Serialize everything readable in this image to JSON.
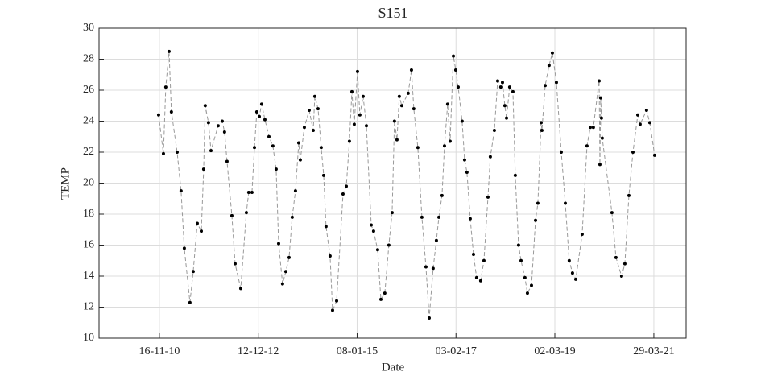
{
  "chart_data": {
    "type": "line",
    "title": "S151",
    "xlabel": "Date",
    "ylabel": "TEMP",
    "line_color": "#999999",
    "marker_color": "#000000",
    "grid": true,
    "line_style": "dashed",
    "xlim": [
      "2009-08-11",
      "2021-12-01"
    ],
    "xticks": [
      {
        "value": "2010-11-16",
        "label": "16-11-10"
      },
      {
        "value": "2012-12-12",
        "label": "12-12-12"
      },
      {
        "value": "2015-01-08",
        "label": "08-01-15"
      },
      {
        "value": "2017-02-03",
        "label": "03-02-17"
      },
      {
        "value": "2019-03-02",
        "label": "02-03-19"
      },
      {
        "value": "2021-03-29",
        "label": "29-03-21"
      }
    ],
    "ylim": [
      10,
      30
    ],
    "yticks": [
      10,
      12,
      14,
      16,
      18,
      20,
      22,
      24,
      26,
      28,
      30
    ],
    "x": [
      "2010-11-10",
      "2010-12-17",
      "2011-01-04",
      "2011-01-29",
      "2011-02-16",
      "2011-04-01",
      "2011-05-01",
      "2011-05-26",
      "2011-07-08",
      "2011-08-02",
      "2011-09-02",
      "2011-10-03",
      "2011-10-21",
      "2011-11-02",
      "2011-11-27",
      "2011-12-16",
      "2012-02-09",
      "2012-03-11",
      "2012-03-29",
      "2012-04-17",
      "2012-05-24",
      "2012-06-18",
      "2012-07-31",
      "2012-09-12",
      "2012-09-30",
      "2012-10-25",
      "2012-11-13",
      "2012-12-01",
      "2012-12-20",
      "2013-01-07",
      "2013-02-01",
      "2013-03-04",
      "2013-04-03",
      "2013-04-28",
      "2013-05-17",
      "2013-06-16",
      "2013-07-11",
      "2013-08-05",
      "2013-08-29",
      "2013-09-23",
      "2013-10-18",
      "2013-10-30",
      "2013-11-30",
      "2014-01-06",
      "2014-02-06",
      "2014-02-18",
      "2014-03-15",
      "2014-04-08",
      "2014-04-27",
      "2014-05-15",
      "2014-06-15",
      "2014-07-04",
      "2014-08-04",
      "2014-09-22",
      "2014-10-17",
      "2014-11-10",
      "2014-11-29",
      "2014-12-17",
      "2015-01-11",
      "2015-01-29",
      "2015-02-23",
      "2015-03-20",
      "2015-04-26",
      "2015-05-14",
      "2015-06-14",
      "2015-07-09",
      "2015-08-08",
      "2015-09-08",
      "2015-10-03",
      "2015-10-21",
      "2015-11-09",
      "2015-11-27",
      "2015-12-16",
      "2016-02-03",
      "2016-02-28",
      "2016-03-17",
      "2016-04-17",
      "2016-05-18",
      "2016-06-18",
      "2016-07-13",
      "2016-08-12",
      "2016-09-06",
      "2016-09-25",
      "2016-10-19",
      "2016-11-07",
      "2016-12-01",
      "2016-12-20",
      "2017-01-14",
      "2017-02-01",
      "2017-02-20",
      "2017-03-22",
      "2017-04-10",
      "2017-04-28",
      "2017-05-23",
      "2017-06-17",
      "2017-07-11",
      "2017-08-11",
      "2017-09-05",
      "2017-10-06",
      "2017-10-24",
      "2017-11-24",
      "2017-12-19",
      "2018-01-12",
      "2018-01-25",
      "2018-02-12",
      "2018-02-25",
      "2018-03-21",
      "2018-04-15",
      "2018-05-03",
      "2018-05-28",
      "2018-06-16",
      "2018-07-16",
      "2018-08-04",
      "2018-09-04",
      "2018-10-05",
      "2018-10-23",
      "2018-11-17",
      "2018-11-23",
      "2018-12-18",
      "2019-01-17",
      "2019-02-11",
      "2019-03-14",
      "2019-04-20",
      "2019-05-21",
      "2019-06-20",
      "2019-07-15",
      "2019-08-09",
      "2019-09-27",
      "2019-11-03",
      "2019-11-28",
      "2019-12-22",
      "2020-02-04",
      "2020-02-10",
      "2020-02-16",
      "2020-02-22",
      "2020-02-28",
      "2020-05-12",
      "2020-06-12",
      "2020-07-25",
      "2020-08-19",
      "2020-09-19",
      "2020-10-20",
      "2020-11-26",
      "2020-12-14",
      "2021-02-01",
      "2021-02-26",
      "2021-04-04"
    ],
    "values": [
      24.4,
      21.9,
      26.2,
      28.5,
      24.6,
      22.0,
      19.5,
      15.8,
      12.3,
      14.3,
      17.4,
      16.9,
      20.9,
      25.0,
      23.9,
      22.1,
      23.7,
      24.0,
      23.3,
      21.4,
      17.9,
      14.8,
      13.2,
      18.1,
      19.4,
      19.4,
      22.3,
      24.6,
      24.3,
      25.1,
      24.1,
      23.0,
      22.4,
      20.9,
      16.1,
      13.5,
      14.3,
      15.2,
      17.8,
      19.5,
      22.6,
      21.5,
      23.6,
      24.7,
      23.4,
      25.6,
      24.8,
      22.3,
      20.5,
      17.2,
      15.3,
      11.8,
      12.4,
      19.3,
      19.8,
      22.7,
      25.9,
      23.8,
      27.2,
      24.4,
      25.6,
      23.7,
      17.3,
      16.9,
      15.7,
      12.5,
      12.9,
      16.0,
      18.1,
      24.0,
      22.8,
      25.6,
      25.0,
      25.8,
      27.3,
      24.8,
      22.3,
      17.8,
      14.6,
      11.3,
      14.5,
      16.3,
      17.8,
      19.2,
      22.4,
      25.1,
      22.7,
      28.2,
      27.3,
      26.2,
      24.0,
      21.5,
      20.7,
      17.7,
      15.4,
      13.9,
      13.7,
      15.0,
      19.1,
      21.7,
      23.4,
      26.6,
      26.2,
      26.5,
      25.0,
      24.2,
      26.2,
      25.9,
      20.5,
      16.0,
      15.0,
      13.9,
      12.9,
      13.4,
      17.6,
      18.7,
      23.9,
      23.4,
      26.3,
      27.6,
      28.4,
      26.5,
      22.0,
      18.7,
      15.0,
      14.2,
      13.8,
      16.7,
      22.4,
      23.6,
      23.6,
      26.6,
      21.2,
      25.5,
      24.2,
      22.9,
      18.1,
      15.2,
      14.0,
      14.8,
      19.2,
      22.0,
      24.4,
      23.8,
      24.7,
      23.9,
      21.8
    ]
  }
}
